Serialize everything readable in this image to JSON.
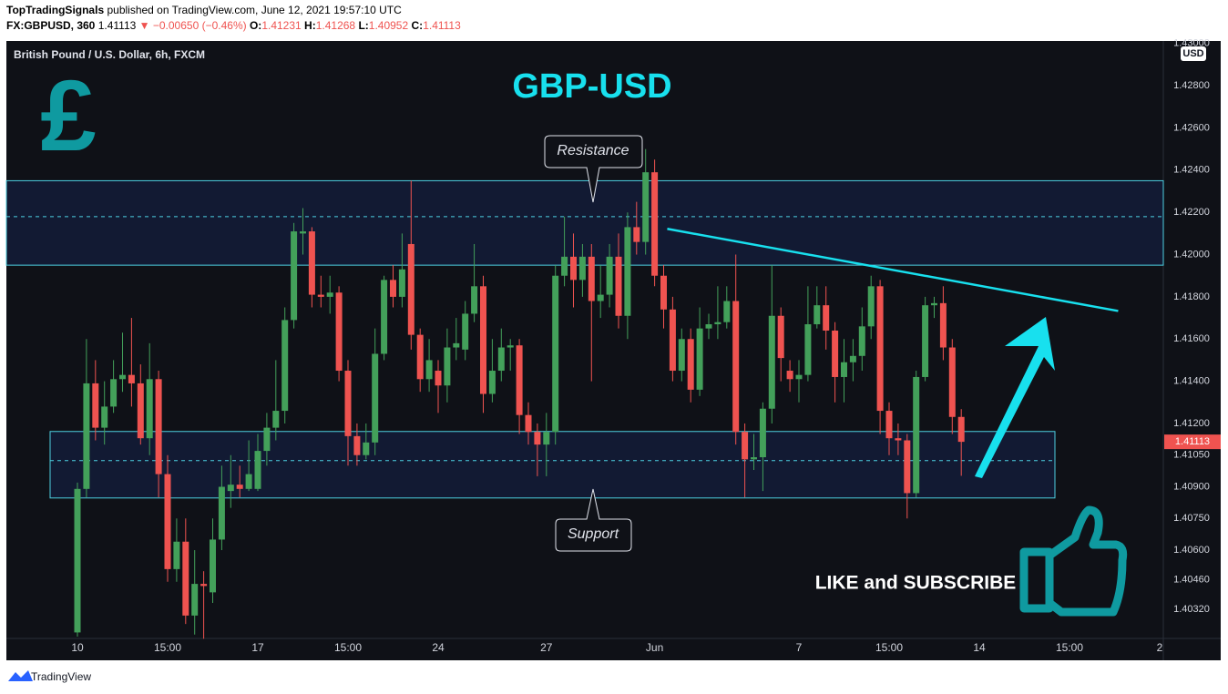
{
  "header": {
    "author": "TopTradingSignals",
    "published": "published on TradingView.com, June 12, 2021 19:57:10 UTC",
    "symbol": "FX:GBPUSD, 360",
    "last": "1.41113",
    "change": "▼ −0.00650 (−0.46%)",
    "o_label": "O:",
    "o": "1.41231",
    "h_label": "H:",
    "h": "1.41268",
    "l_label": "L:",
    "l": "1.40952",
    "c_label": "C:",
    "c": "1.41113"
  },
  "chart_data": {
    "type": "candlestick",
    "title": "GBP-USD",
    "subtitle": "British Pound / U.S. Dollar, 6h, FXCM",
    "currency": "USD",
    "up_color": "#43a05a",
    "down_color": "#ef5350",
    "grid": false,
    "categories": [
      "10",
      null,
      null,
      null,
      null,
      null,
      null,
      null,
      null,
      null,
      "15:00",
      null,
      null,
      null,
      null,
      null,
      null,
      null,
      null,
      null,
      "17",
      null,
      null,
      null,
      null,
      null,
      null,
      null,
      null,
      null,
      "15:00",
      null,
      null,
      null,
      null,
      null,
      null,
      null,
      null,
      null,
      "24",
      null,
      null,
      null,
      null,
      null,
      null,
      null,
      null,
      null,
      null,
      null,
      "27",
      null,
      null,
      null,
      null,
      null,
      null,
      null,
      null,
      null,
      null,
      null,
      "Jun",
      null,
      null,
      null,
      null,
      null,
      null,
      null,
      null,
      null,
      null,
      null,
      null,
      null,
      null,
      null,
      "7",
      null,
      null,
      null,
      null,
      null,
      null,
      null,
      null,
      null,
      "15:00",
      null,
      null,
      null,
      null,
      null,
      null,
      null,
      null,
      null,
      "14",
      null,
      null,
      null,
      null,
      null,
      null,
      null,
      null,
      null,
      "15:00",
      null,
      null,
      null,
      null,
      null,
      null,
      null,
      null,
      null,
      "2"
    ],
    "open": [
      1.4021,
      1.4089,
      1.4139,
      1.4118,
      1.4128,
      1.4141,
      1.4143,
      1.4139,
      1.4113,
      1.4141,
      1.4096,
      1.4051,
      1.4064,
      1.4029,
      1.4044,
      1.404,
      1.4065,
      1.4088,
      1.4091,
      1.4089,
      1.4089,
      1.4107,
      1.4118,
      1.4126,
      1.4169,
      1.421,
      1.4211,
      1.4181,
      1.418,
      1.4182,
      1.4145,
      1.4114,
      1.4105,
      1.4111,
      1.4153,
      1.4188,
      1.418,
      1.4205,
      1.4162,
      1.4141,
      1.4145,
      1.4138,
      1.4156,
      1.4155,
      1.4172,
      1.4185,
      1.4134,
      1.4145,
      1.4156,
      1.4157,
      1.4124,
      1.4116,
      1.411,
      1.4116,
      1.419,
      1.4199,
      1.4188,
      1.4199,
      1.4178,
      1.4181,
      1.4199,
      1.4171,
      1.4213,
      1.4206,
      1.4239,
      1.419,
      1.4174,
      1.4145,
      1.416,
      1.4136,
      1.4165,
      1.4167,
      1.4168,
      1.4178,
      1.4116,
      1.4103,
      1.4104,
      1.4127,
      1.4171,
      1.4145,
      1.4141,
      1.4143,
      1.4167,
      1.4176,
      1.4164,
      1.4142,
      1.4149,
      1.4152,
      1.4166,
      1.4185,
      1.4126,
      1.4113,
      1.4112,
      1.4087,
      1.4142,
      1.4176,
      1.4177,
      1.4156,
      1.41231,
      null,
      null,
      null,
      null,
      null,
      null,
      null,
      null,
      null,
      null,
      null,
      null,
      null,
      null,
      null,
      null,
      null,
      null,
      null,
      null,
      null,
      null
    ],
    "high": [
      1.4092,
      1.416,
      1.415,
      1.414,
      1.415,
      1.4163,
      1.417,
      1.4148,
      1.4158,
      1.4145,
      1.4105,
      1.4075,
      1.4075,
      1.406,
      1.405,
      1.4075,
      1.41,
      1.4105,
      1.41,
      1.4112,
      1.4115,
      1.4125,
      1.415,
      1.4175,
      1.4215,
      1.4222,
      1.4213,
      1.419,
      1.419,
      1.4185,
      1.415,
      1.412,
      1.412,
      1.4165,
      1.419,
      1.4195,
      1.421,
      1.4235,
      1.4165,
      1.416,
      1.415,
      1.4165,
      1.417,
      1.4178,
      1.4205,
      1.419,
      1.416,
      1.4165,
      1.416,
      1.416,
      1.413,
      1.412,
      1.4125,
      1.4195,
      1.4218,
      1.421,
      1.4205,
      1.4205,
      1.4195,
      1.4205,
      1.421,
      1.422,
      1.4225,
      1.425,
      1.4245,
      1.4195,
      1.418,
      1.4165,
      1.4165,
      1.4175,
      1.4172,
      1.4185,
      1.4185,
      1.42,
      1.412,
      1.4115,
      1.413,
      1.4195,
      1.4175,
      1.415,
      1.415,
      1.4185,
      1.4185,
      1.4185,
      1.4168,
      1.416,
      1.416,
      1.4175,
      1.419,
      1.4188,
      1.413,
      1.412,
      1.4115,
      1.4145,
      1.418,
      1.418,
      1.4185,
      1.416,
      1.41268,
      null,
      null,
      null,
      null,
      null,
      null,
      null,
      null,
      null,
      null,
      null,
      null,
      null,
      null,
      null,
      null,
      null,
      null,
      null,
      null,
      null,
      null
    ],
    "low": [
      1.4019,
      1.4085,
      1.4112,
      1.411,
      1.4125,
      1.4135,
      1.4128,
      1.411,
      1.4105,
      1.4085,
      1.4045,
      1.4045,
      1.4025,
      1.402,
      1.4018,
      1.4035,
      1.406,
      1.408,
      1.4085,
      1.4088,
      1.4088,
      1.41,
      1.4112,
      1.412,
      1.4165,
      1.42,
      1.4175,
      1.4175,
      1.4172,
      1.414,
      1.41,
      1.41,
      1.4103,
      1.4105,
      1.415,
      1.4175,
      1.4175,
      1.4155,
      1.4135,
      1.4135,
      1.4125,
      1.413,
      1.415,
      1.415,
      1.4168,
      1.4125,
      1.413,
      1.414,
      1.4145,
      1.4115,
      1.411,
      1.4095,
      1.4095,
      1.411,
      1.4185,
      1.4175,
      1.418,
      1.414,
      1.417,
      1.4175,
      1.4165,
      1.416,
      1.42,
      1.42,
      1.4185,
      1.4165,
      1.414,
      1.414,
      1.413,
      1.4133,
      1.416,
      1.416,
      1.4165,
      1.411,
      1.4085,
      1.4098,
      1.4088,
      1.412,
      1.414,
      1.4135,
      1.413,
      1.414,
      1.4165,
      1.4155,
      1.413,
      1.413,
      1.414,
      1.4145,
      1.416,
      1.4115,
      1.4105,
      1.4105,
      1.4075,
      1.4085,
      1.414,
      1.417,
      1.415,
      1.4115,
      1.40952,
      null,
      null,
      null,
      null,
      null,
      null,
      null,
      null,
      null,
      null,
      null,
      null,
      null,
      null,
      null,
      null,
      null,
      null,
      null,
      null,
      null,
      null
    ],
    "close": [
      1.4089,
      1.4139,
      1.4118,
      1.4128,
      1.4141,
      1.4143,
      1.4139,
      1.4113,
      1.4141,
      1.4096,
      1.4051,
      1.4064,
      1.4029,
      1.4044,
      1.4043,
      1.4065,
      1.409,
      1.4091,
      1.4089,
      1.4096,
      1.4107,
      1.4118,
      1.4126,
      1.4169,
      1.4211,
      1.4211,
      1.4181,
      1.418,
      1.4182,
      1.4145,
      1.4114,
      1.4105,
      1.4111,
      1.4153,
      1.4188,
      1.418,
      1.4193,
      1.4162,
      1.4141,
      1.415,
      1.4138,
      1.4156,
      1.4158,
      1.4172,
      1.4185,
      1.4134,
      1.4145,
      1.4156,
      1.4157,
      1.4124,
      1.4116,
      1.411,
      1.4116,
      1.419,
      1.4199,
      1.4188,
      1.4199,
      1.4178,
      1.4181,
      1.4199,
      1.4171,
      1.4213,
      1.4206,
      1.4239,
      1.419,
      1.4174,
      1.4145,
      1.416,
      1.4136,
      1.4165,
      1.4167,
      1.4168,
      1.4178,
      1.4116,
      1.4103,
      1.4104,
      1.4127,
      1.4171,
      1.4151,
      1.4141,
      1.4143,
      1.4167,
      1.4176,
      1.4164,
      1.4142,
      1.4149,
      1.4152,
      1.4166,
      1.4185,
      1.4126,
      1.4113,
      1.4112,
      1.4087,
      1.4142,
      1.4176,
      1.4177,
      1.4156,
      1.41231,
      1.41113,
      null,
      null,
      null,
      null,
      null,
      null,
      null,
      null,
      null,
      null,
      null,
      null,
      null,
      null,
      null,
      null,
      null,
      null,
      null,
      null,
      null,
      null
    ],
    "ylim": [
      1.40078,
      1.43012
    ],
    "yticks": [
      {
        "value": 1.43,
        "label": "1.43000"
      },
      {
        "value": 1.428,
        "label": "1.42800"
      },
      {
        "value": 1.426,
        "label": "1.42600"
      },
      {
        "value": 1.424,
        "label": "1.42400"
      },
      {
        "value": 1.422,
        "label": "1.42200"
      },
      {
        "value": 1.42,
        "label": "1.42000"
      },
      {
        "value": 1.418,
        "label": "1.41800"
      },
      {
        "value": 1.416,
        "label": "1.41600"
      },
      {
        "value": 1.414,
        "label": "1.41400"
      },
      {
        "value": 1.412,
        "label": "1.41200"
      },
      {
        "value": 1.4105,
        "label": "1.41050"
      },
      {
        "value": 1.409,
        "label": "1.40900"
      },
      {
        "value": 1.4075,
        "label": "1.40750"
      },
      {
        "value": 1.406,
        "label": "1.40600"
      },
      {
        "value": 1.4046,
        "label": "1.40460"
      },
      {
        "value": 1.4032,
        "label": "1.40320"
      }
    ],
    "zones": [
      {
        "label": "Resistance",
        "top": 1.4235,
        "bottom": 1.4195,
        "mid": 1.4218
      },
      {
        "label": "Support",
        "top": 1.41162,
        "bottom": 1.40847,
        "mid": 1.41024
      }
    ],
    "trendline": {
      "x": [
        65.4,
        115.4
      ],
      "y": [
        1.42122,
        1.41733
      ]
    },
    "call_to_action": "LIKE and SUBSCRIBE"
  },
  "footer": {
    "brand": "TradingView"
  }
}
